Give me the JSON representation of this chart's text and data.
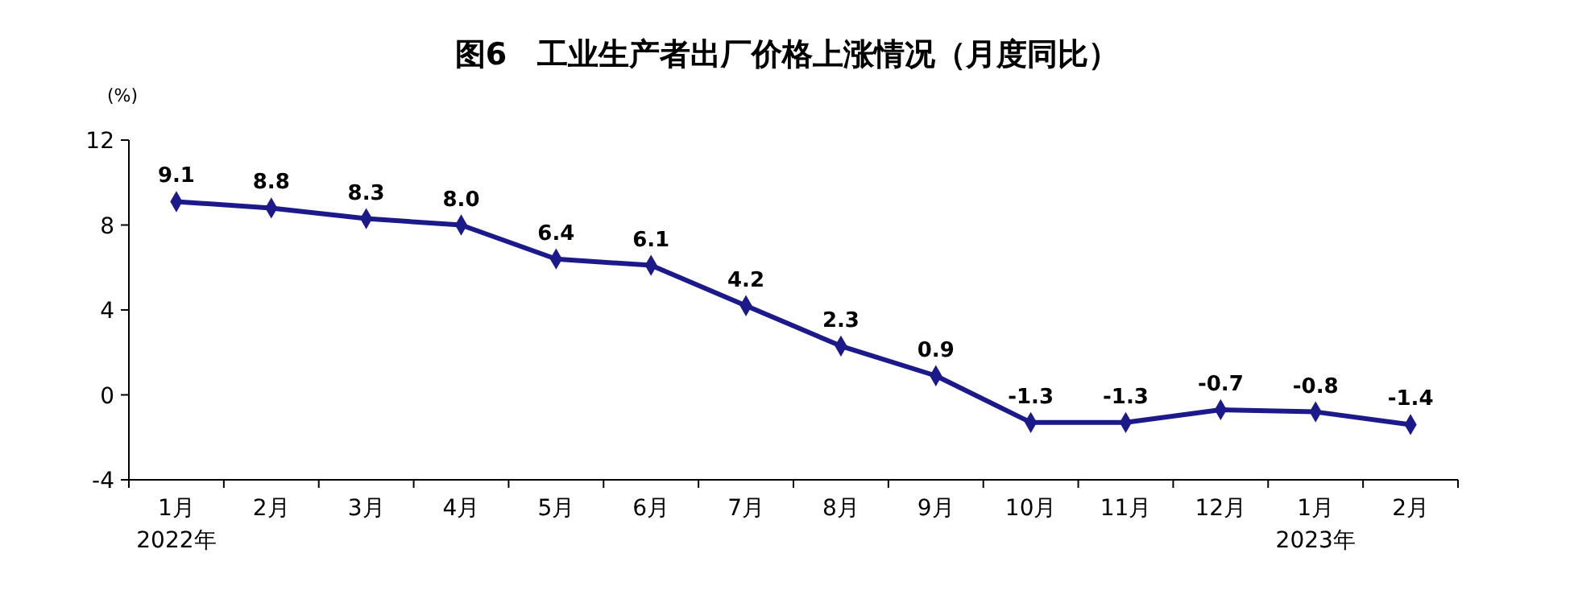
{
  "chart_data": {
    "type": "line",
    "title": "图6　工业生产者出厂价格上涨情况（月度同比）",
    "ylabel": "(%)",
    "categories": [
      "1月\n2022年",
      "2月",
      "3月",
      "4月",
      "5月",
      "6月",
      "7月",
      "8月",
      "9月",
      "10月",
      "11月",
      "12月",
      "1月\n2023年",
      "2月"
    ],
    "series": [
      {
        "color": "#1c1a8a",
        "values": [
          9.1,
          8.8,
          8.3,
          8.0,
          6.4,
          6.1,
          4.2,
          2.3,
          0.9,
          -1.3,
          -1.3,
          -0.7,
          -0.8,
          -1.4
        ],
        "value_labels": [
          "9.1",
          "8.8",
          "8.3",
          "8.0",
          "6.4",
          "6.1",
          "4.2",
          "2.3",
          "0.9",
          "-1.3",
          "-1.3",
          "-0.7",
          "-0.8",
          "-1.4"
        ]
      }
    ],
    "ylim": [
      -4,
      12
    ],
    "yticks": [
      -4,
      0,
      4,
      8,
      12
    ],
    "grid": false,
    "marker": "diamond",
    "line_style": "solid"
  }
}
